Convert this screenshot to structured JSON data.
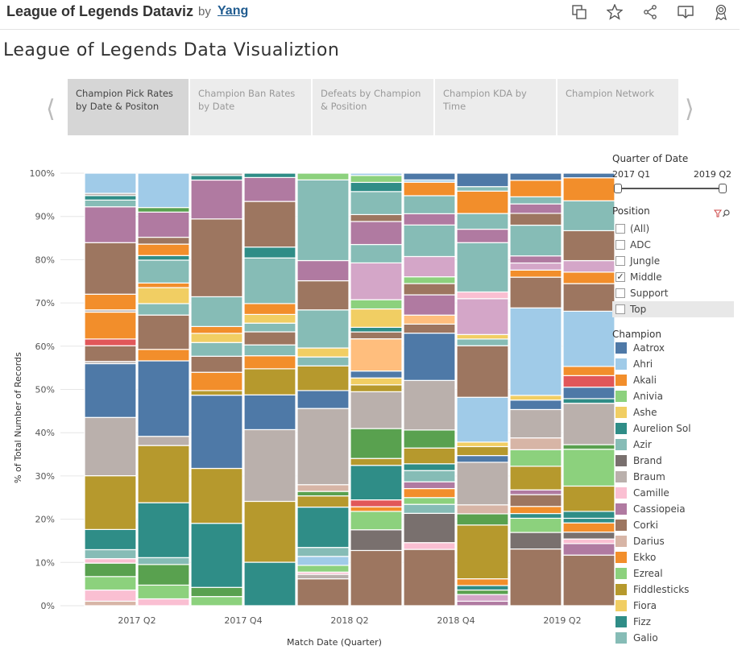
{
  "header": {
    "title": "League of Legends Dataviz",
    "by": "by",
    "author": "Yang",
    "icons": [
      "copy-icon",
      "star-icon",
      "share-icon",
      "download-icon",
      "badge-icon"
    ]
  },
  "page_title": "League of Legends Data Visualiztion",
  "story_tabs": [
    {
      "label": "Champion Pick Rates by Date & Positon",
      "active": true
    },
    {
      "label": "Champion Ban Rates by Date",
      "active": false
    },
    {
      "label": "Defeats by Champion & Position",
      "active": false
    },
    {
      "label": "Champion KDA by Time",
      "active": false
    },
    {
      "label": "Champion Network",
      "active": false
    }
  ],
  "filters": {
    "quarter_title": "Quarter of Date",
    "quarter_start": "2017 Q1",
    "quarter_end": "2019 Q2",
    "position_title": "Position",
    "positions": [
      {
        "label": "(All)",
        "checked": false
      },
      {
        "label": "ADC",
        "checked": false
      },
      {
        "label": "Jungle",
        "checked": false
      },
      {
        "label": "Middle",
        "checked": true
      },
      {
        "label": "Support",
        "checked": false
      },
      {
        "label": "Top",
        "checked": false
      }
    ],
    "champion_title": "Champion",
    "legend": [
      {
        "name": "Aatrox",
        "color": "#4e79a7"
      },
      {
        "name": "Ahri",
        "color": "#a0cbe8"
      },
      {
        "name": "Akali",
        "color": "#f28e2b"
      },
      {
        "name": "Anivia",
        "color": "#8cd17d"
      },
      {
        "name": "Ashe",
        "color": "#f1ce63"
      },
      {
        "name": "Aurelion Sol",
        "color": "#2f8d87"
      },
      {
        "name": "Azir",
        "color": "#86bcb6"
      },
      {
        "name": "Brand",
        "color": "#79706e"
      },
      {
        "name": "Braum",
        "color": "#bab0ac"
      },
      {
        "name": "Camille",
        "color": "#fabfd2"
      },
      {
        "name": "Cassiopeia",
        "color": "#b07aa1"
      },
      {
        "name": "Corki",
        "color": "#9d7660"
      },
      {
        "name": "Darius",
        "color": "#d7b5a6"
      },
      {
        "name": "Ekko",
        "color": "#f28e2b"
      },
      {
        "name": "Ezreal",
        "color": "#8cd17d"
      },
      {
        "name": "Fiddlesticks",
        "color": "#b6992d"
      },
      {
        "name": "Fiora",
        "color": "#f1ce63"
      },
      {
        "name": "Fizz",
        "color": "#2f8d87"
      },
      {
        "name": "Galio",
        "color": "#86bcb6"
      }
    ]
  },
  "chart_data": {
    "type": "bar",
    "stacked": true,
    "xlabel": "Match Date (Quarter)",
    "ylabel": "% of Total Number of Records",
    "ylim": [
      0,
      100
    ],
    "yticks": [
      "0%",
      "10%",
      "20%",
      "30%",
      "40%",
      "50%",
      "60%",
      "70%",
      "80%",
      "90%",
      "100%"
    ],
    "x_tick_labels": [
      "2017 Q2",
      "2017 Q4",
      "2018 Q2",
      "2018 Q4",
      "2019 Q2"
    ],
    "categories": [
      "2017 Q1",
      "2017 Q2",
      "2017 Q3",
      "2017 Q4",
      "2018 Q1",
      "2018 Q2",
      "2018 Q3",
      "2018 Q4",
      "2019 Q1",
      "2019 Q2"
    ],
    "stacks": [
      [
        [
          "#d7b5a6",
          1
        ],
        [
          "#fabfd2",
          2.5
        ],
        [
          "#8cd17d",
          3
        ],
        [
          "#59a14f",
          3
        ],
        [
          "#fabfd2",
          1
        ],
        [
          "#86bcb6",
          2
        ],
        [
          "#2f8d87",
          4.5
        ],
        [
          "#b6992d",
          12
        ],
        [
          "#bab0ac",
          13
        ],
        [
          "#4e79a7",
          12
        ],
        [
          "#bab0ac",
          0.5
        ],
        [
          "#9d7660",
          3.5
        ],
        [
          "#e15759",
          1.5
        ],
        [
          "#f28e2b",
          6
        ],
        [
          "#bab0ac",
          0.5
        ],
        [
          "#f28e2b",
          3.5
        ],
        [
          "#9d7660",
          11.5
        ],
        [
          "#b07aa1",
          8
        ],
        [
          "#86bcb6",
          1.5
        ],
        [
          "#2f8d87",
          1
        ],
        [
          "#bab0ac",
          0.5
        ],
        [
          "#a0cbe8",
          4.5
        ]
      ],
      [
        [
          "#fabfd2",
          1.5
        ],
        [
          "#8cd17d",
          3
        ],
        [
          "#59a14f",
          4.5
        ],
        [
          "#86bcb6",
          1.5
        ],
        [
          "#2f8d87",
          12
        ],
        [
          "#b6992d",
          12.5
        ],
        [
          "#bab0ac",
          2
        ],
        [
          "#4e79a7",
          16.5
        ],
        [
          "#f28e2b",
          2.5
        ],
        [
          "#9d7660",
          7.5
        ],
        [
          "#86bcb6",
          2.5
        ],
        [
          "#f1ce63",
          3.5
        ],
        [
          "#f28e2b",
          1
        ],
        [
          "#86bcb6",
          5
        ],
        [
          "#2f8d87",
          1
        ],
        [
          "#f28e2b",
          2.5
        ],
        [
          "#9d7660",
          1.5
        ],
        [
          "#b07aa1",
          5.5
        ],
        [
          "#59a14f",
          1
        ],
        [
          "#a0cbe8",
          7.5
        ]
      ],
      [
        [
          "#8cd17d",
          2
        ],
        [
          "#59a14f",
          2
        ],
        [
          "#2f8d87",
          14
        ],
        [
          "#b6992d",
          12
        ],
        [
          "#4e79a7",
          16
        ],
        [
          "#b6992d",
          1
        ],
        [
          "#f28e2b",
          4
        ],
        [
          "#9d7660",
          3.5
        ],
        [
          "#86bcb6",
          3
        ],
        [
          "#f1ce63",
          2
        ],
        [
          "#f28e2b",
          1.5
        ],
        [
          "#86bcb6",
          6.5
        ],
        [
          "#9d7660",
          17
        ],
        [
          "#b07aa1",
          8.5
        ],
        [
          "#2f8d87",
          1
        ],
        [
          "#bab0ac",
          0.5
        ]
      ],
      [
        [
          "#2f8d87",
          10
        ],
        [
          "#b6992d",
          14
        ],
        [
          "#bab0ac",
          16.5
        ],
        [
          "#4e79a7",
          8
        ],
        [
          "#b6992d",
          6
        ],
        [
          "#f28e2b",
          3
        ],
        [
          "#86bcb6",
          2.5
        ],
        [
          "#9d7660",
          3
        ],
        [
          "#86bcb6",
          2
        ],
        [
          "#f1ce63",
          2
        ],
        [
          "#f28e2b",
          2.5
        ],
        [
          "#86bcb6",
          10.5
        ],
        [
          "#2f8d87",
          2.5
        ],
        [
          "#9d7660",
          10.5
        ],
        [
          "#b07aa1",
          5.5
        ],
        [
          "#2f8d87",
          1
        ]
      ],
      [
        [
          "#9d7660",
          6
        ],
        [
          "#bab0ac",
          1
        ],
        [
          "#fabfd2",
          0.5
        ],
        [
          "#8cd17d",
          1.5
        ],
        [
          "#a0cbe8",
          2
        ],
        [
          "#86bcb6",
          2
        ],
        [
          "#2f8d87",
          9
        ],
        [
          "#b6992d",
          2.5
        ],
        [
          "#59a14f",
          1
        ],
        [
          "#d7b5a6",
          1.5
        ],
        [
          "#bab0ac",
          17
        ],
        [
          "#4e79a7",
          4
        ],
        [
          "#b6992d",
          5.5
        ],
        [
          "#86bcb6",
          2
        ],
        [
          "#f1ce63",
          2
        ],
        [
          "#86bcb6",
          8.5
        ],
        [
          "#9d7660",
          6.5
        ],
        [
          "#b07aa1",
          4.5
        ],
        [
          "#86bcb6",
          18
        ],
        [
          "#8cd17d",
          1.5
        ]
      ],
      [
        [
          "#9d7660",
          12
        ],
        [
          "#79706e",
          4.5
        ],
        [
          "#8cd17d",
          4
        ],
        [
          "#f28e2b",
          1
        ],
        [
          "#e15759",
          1.5
        ],
        [
          "#2f8d87",
          7.5
        ],
        [
          "#b6992d",
          1.5
        ],
        [
          "#59a14f",
          6.5
        ],
        [
          "#bab0ac",
          8
        ],
        [
          "#b6992d",
          1.5
        ],
        [
          "#f1ce63",
          1.5
        ],
        [
          "#4e79a7",
          1.5
        ],
        [
          "#ffbe7d",
          7
        ],
        [
          "#9d7660",
          1.5
        ],
        [
          "#2f8d87",
          1
        ],
        [
          "#f1ce63",
          4
        ],
        [
          "#8cd17d",
          2
        ],
        [
          "#d4a6c8",
          8
        ],
        [
          "#86bcb6",
          4
        ],
        [
          "#b07aa1",
          5
        ],
        [
          "#9d7660",
          1.5
        ],
        [
          "#86bcb6",
          5
        ],
        [
          "#2f8d87",
          2
        ],
        [
          "#8cd17d",
          1.5
        ],
        [
          "#a0cbe8",
          0.5
        ]
      ],
      [
        [
          "#9d7660",
          12.5
        ],
        [
          "#fabfd2",
          1.5
        ],
        [
          "#79706e",
          6.5
        ],
        [
          "#86bcb6",
          2
        ],
        [
          "#8cd17d",
          1.5
        ],
        [
          "#f28e2b",
          2
        ],
        [
          "#b07aa1",
          1.5
        ],
        [
          "#86bcb6",
          2.5
        ],
        [
          "#2f8d87",
          1.5
        ],
        [
          "#b6992d",
          3.5
        ],
        [
          "#59a14f",
          4
        ],
        [
          "#bab0ac",
          11
        ],
        [
          "#4e79a7",
          10.5
        ],
        [
          "#9d7660",
          2
        ],
        [
          "#ffbe7d",
          2
        ],
        [
          "#b07aa1",
          4.5
        ],
        [
          "#9d7660",
          2.5
        ],
        [
          "#8cd17d",
          1.5
        ],
        [
          "#d4a6c8",
          4.5
        ],
        [
          "#86bcb6",
          7
        ],
        [
          "#b07aa1",
          2.5
        ],
        [
          "#86bcb6",
          4
        ],
        [
          "#f28e2b",
          3
        ],
        [
          "#a0cbe8",
          0.5
        ],
        [
          "#4e79a7",
          1.5
        ]
      ],
      [
        [
          "#b07aa1",
          1
        ],
        [
          "#d4a6c8",
          1.5
        ],
        [
          "#59a14f",
          1
        ],
        [
          "#2f8d87",
          1
        ],
        [
          "#f28e2b",
          1.5
        ],
        [
          "#b6992d",
          12
        ],
        [
          "#59a14f",
          2.5
        ],
        [
          "#d7b5a6",
          2
        ],
        [
          "#bab0ac",
          9.5
        ],
        [
          "#4e79a7",
          1.5
        ],
        [
          "#b6992d",
          2
        ],
        [
          "#f1ce63",
          1
        ],
        [
          "#a0cbe8",
          10
        ],
        [
          "#9d7660",
          11.5
        ],
        [
          "#86bcb6",
          1.5
        ],
        [
          "#f1ce63",
          1
        ],
        [
          "#d4a6c8",
          8
        ],
        [
          "#fabfd2",
          1.5
        ],
        [
          "#86bcb6",
          11
        ],
        [
          "#b07aa1",
          3
        ],
        [
          "#86bcb6",
          3.5
        ],
        [
          "#f28e2b",
          5
        ],
        [
          "#86bcb6",
          1
        ],
        [
          "#4e79a7",
          3
        ]
      ],
      [
        [
          "#9d7660",
          12
        ],
        [
          "#79706e",
          3.5
        ],
        [
          "#8cd17d",
          3
        ],
        [
          "#2f8d87",
          1
        ],
        [
          "#f28e2b",
          1.5
        ],
        [
          "#9d7660",
          2.5
        ],
        [
          "#b07aa1",
          1
        ],
        [
          "#b6992d",
          5
        ],
        [
          "#8cd17d",
          3.5
        ],
        [
          "#d7b5a6",
          2.5
        ],
        [
          "#bab0ac",
          6
        ],
        [
          "#4e79a7",
          2
        ],
        [
          "#f1ce63",
          1
        ],
        [
          "#a0cbe8",
          18.5
        ],
        [
          "#9d7660",
          6.5
        ],
        [
          "#f28e2b",
          1.5
        ],
        [
          "#d4a6c8",
          1.5
        ],
        [
          "#b07aa1",
          1.5
        ],
        [
          "#86bcb6",
          6.5
        ],
        [
          "#9d7660",
          2.5
        ],
        [
          "#b07aa1",
          2
        ],
        [
          "#86bcb6",
          1.5
        ],
        [
          "#f28e2b",
          3.5
        ],
        [
          "#4e79a7",
          1.5
        ]
      ],
      [
        [
          "#9d7660",
          11
        ],
        [
          "#b07aa1",
          2.5
        ],
        [
          "#fabfd2",
          1
        ],
        [
          "#79706e",
          1.5
        ],
        [
          "#f28e2b",
          2
        ],
        [
          "#2f8d87",
          1
        ],
        [
          "#2f8d87",
          1.5
        ],
        [
          "#b6992d",
          5.5
        ],
        [
          "#8cd17d",
          8
        ],
        [
          "#59a14f",
          1
        ],
        [
          "#bab0ac",
          9
        ],
        [
          "#2f8d87",
          1
        ],
        [
          "#4e79a7",
          2.5
        ],
        [
          "#e15759",
          2.5
        ],
        [
          "#f28e2b",
          2
        ],
        [
          "#a0cbe8",
          12
        ],
        [
          "#9d7660",
          6
        ],
        [
          "#f28e2b",
          2.5
        ],
        [
          "#d4a6c8",
          2.5
        ],
        [
          "#9d7660",
          6.5
        ],
        [
          "#86bcb6",
          6.5
        ],
        [
          "#f28e2b",
          5
        ],
        [
          "#4e79a7",
          1
        ]
      ]
    ]
  }
}
